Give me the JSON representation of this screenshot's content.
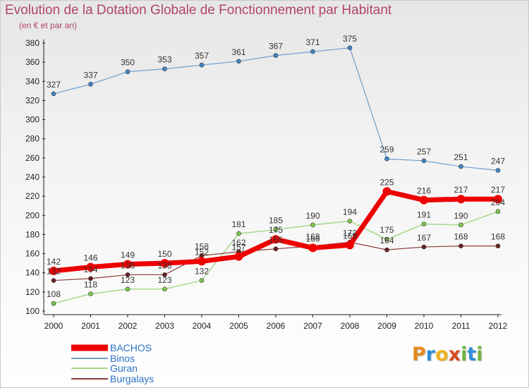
{
  "title": "Evolution de la Dotation Globale de Fonctionnement par Habitant",
  "subtitle": "(en € et par an)",
  "logo": {
    "letters": [
      "P",
      "r",
      "o",
      "x",
      "i",
      "t",
      "i"
    ],
    "colors": [
      "#e58a20",
      "#2f8fd6",
      "#f0b21e",
      "#d94c24",
      "#6fb43f",
      "#2f8fd6",
      "#6fb43f"
    ]
  },
  "chart_data": {
    "type": "line",
    "x": [
      "2000",
      "2001",
      "2002",
      "2003",
      "2004",
      "2005",
      "2006",
      "2007",
      "2008",
      "2009",
      "2010",
      "2011",
      "2012"
    ],
    "ylim": [
      100,
      380
    ],
    "yticks": [
      100,
      120,
      140,
      160,
      180,
      200,
      220,
      240,
      260,
      280,
      300,
      320,
      340,
      360,
      380
    ],
    "grid": false,
    "legend_position": "bottom-left",
    "series": [
      {
        "name": "Binos",
        "color": "#6a9ed0",
        "point_color": "#3f86c8",
        "width": 1.2,
        "marker": 3,
        "values": [
          327,
          337,
          350,
          353,
          357,
          361,
          367,
          371,
          375,
          259,
          257,
          251,
          247
        ]
      },
      {
        "name": "Guran",
        "color": "#a6d98a",
        "point_color": "#7ccb4a",
        "width": 1.5,
        "marker": 3,
        "values": [
          108,
          118,
          123,
          123,
          132,
          181,
          185,
          190,
          194,
          175,
          191,
          190,
          204
        ]
      },
      {
        "name": "Burgalays",
        "color": "#8a3b3b",
        "point_color": "#6b1f1f",
        "width": 1.2,
        "marker": 3,
        "values": [
          132,
          134,
          138,
          138,
          158,
          162,
          165,
          168,
          172,
          164,
          167,
          168,
          168
        ]
      },
      {
        "name": "BACHOS",
        "color": "#ee0000",
        "point_color": "#ee0000",
        "width": 7,
        "marker": 6,
        "values": [
          142,
          146,
          149,
          150,
          152,
          157,
          175,
          166,
          169,
          225,
          216,
          217,
          217
        ]
      }
    ],
    "legend_order": [
      "BACHOS",
      "Binos",
      "Guran",
      "Burgalays"
    ]
  }
}
